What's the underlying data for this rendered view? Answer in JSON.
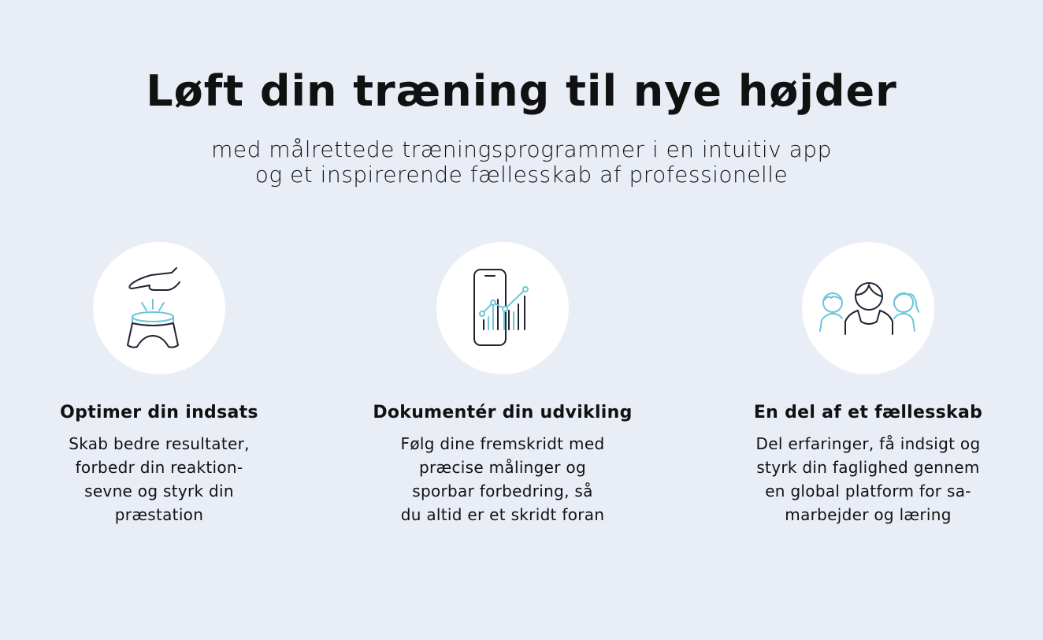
{
  "header": {
    "title": "Løft din træning til nye højder",
    "subtitle_lines": [
      "med målrettede træningsprogrammer i en intuitiv app",
      "og et inspirerende fællesskab af professionelle"
    ]
  },
  "colors": {
    "background": "#e9edf6",
    "accent": "#6cc6d9",
    "line": "#1f2430"
  },
  "features": [
    {
      "icon": "hand-over-bowl-icon",
      "title": "Optimer din indsats",
      "lines": [
        "Skab bedre resultater,",
        "forbedr din reaktion-",
        "sevne og styrk din",
        "præstation"
      ]
    },
    {
      "icon": "phone-chart-icon",
      "title": "Dokumentér din udvikling",
      "lines": [
        "Følg dine fremskridt med",
        "præcise målinger og",
        "sporbar forbedring, så",
        "du altid er et skridt foran"
      ]
    },
    {
      "icon": "community-people-icon",
      "title": "En del af et fællesskab",
      "lines": [
        "Del erfaringer, få indsigt og",
        "styrk din faglighed gennem",
        "en global platform for sa-",
        "marbejder og læring"
      ]
    }
  ]
}
